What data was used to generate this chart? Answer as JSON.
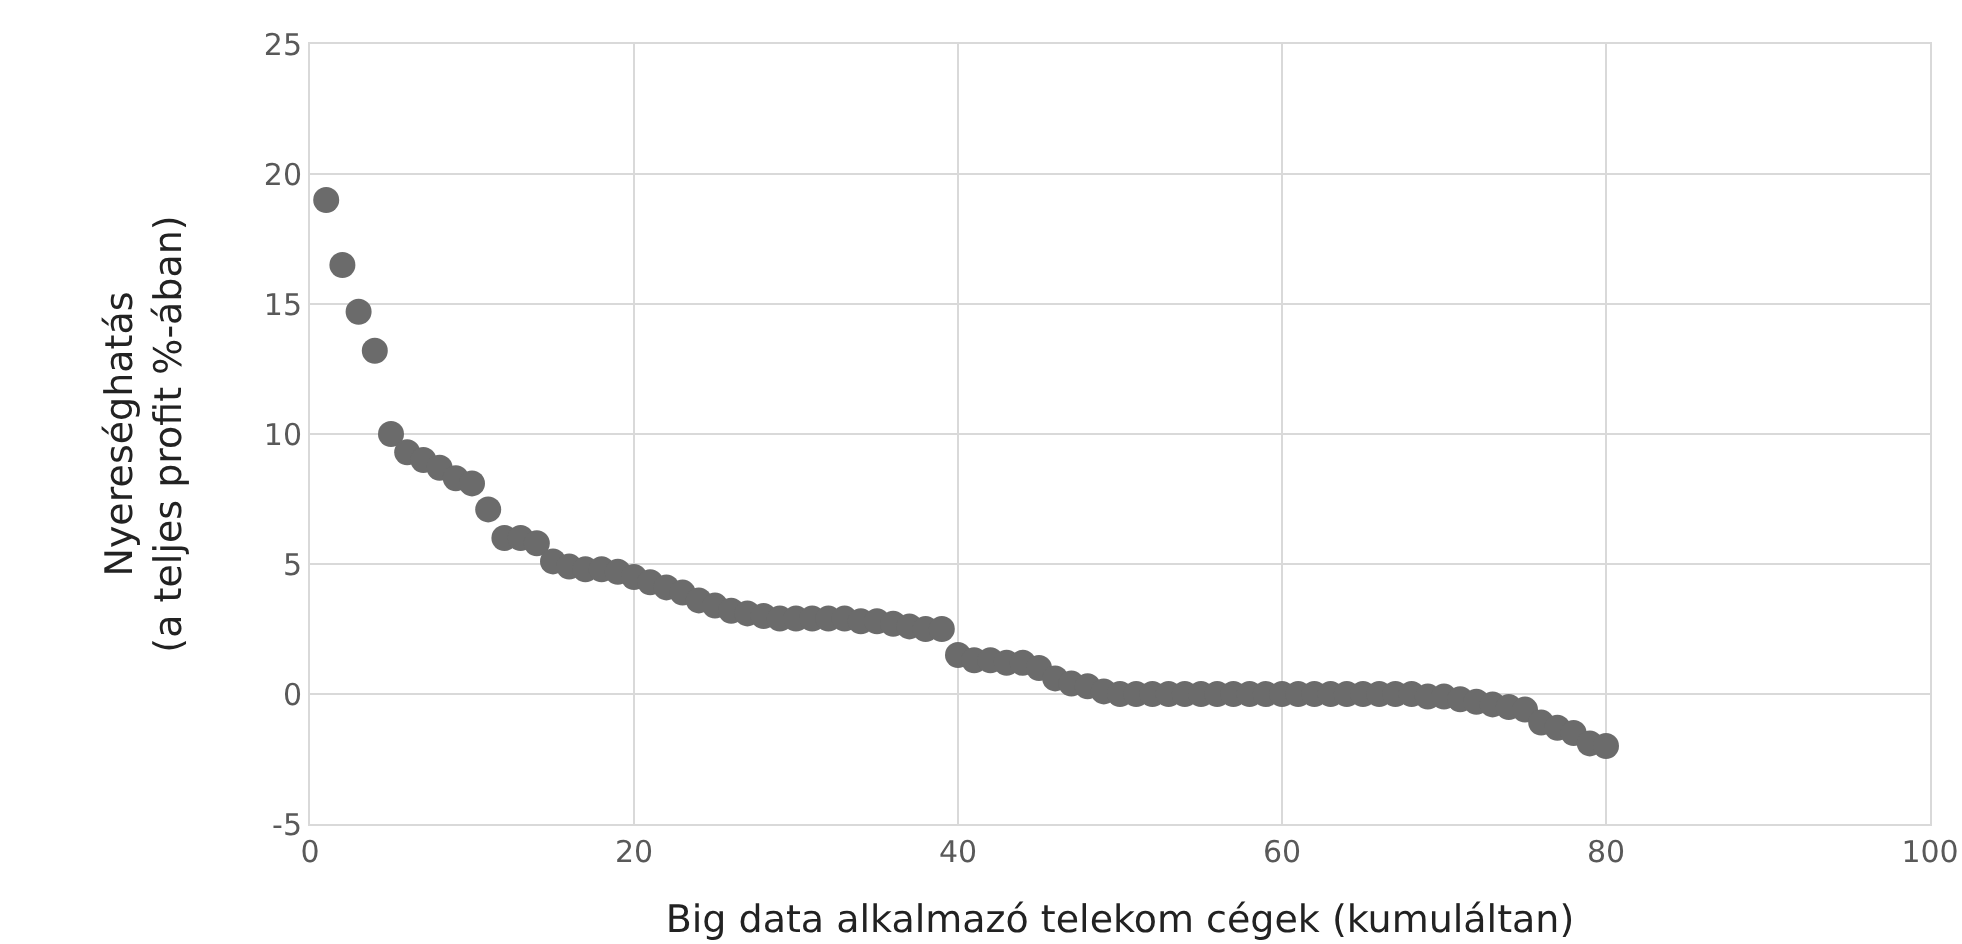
{
  "chart_data": {
    "type": "scatter",
    "xlabel": "Big data alkalmazó telekom cégek (kumuláltan)",
    "ylabel": "Nyereséghatás\n(a teljes profit %-ában)",
    "x": [
      1,
      2,
      3,
      4,
      5,
      6,
      7,
      8,
      9,
      10,
      11,
      12,
      13,
      14,
      15,
      16,
      17,
      18,
      19,
      20,
      21,
      22,
      23,
      24,
      25,
      26,
      27,
      28,
      29,
      30,
      31,
      32,
      33,
      34,
      35,
      36,
      37,
      38,
      39,
      40,
      41,
      42,
      43,
      44,
      45,
      46,
      47,
      48,
      49,
      50,
      51,
      52,
      53,
      54,
      55,
      56,
      57,
      58,
      59,
      60,
      61,
      62,
      63,
      64,
      65,
      66,
      67,
      68,
      69,
      70,
      71,
      72,
      73,
      74,
      75,
      76,
      77,
      78,
      79,
      80
    ],
    "series": [
      {
        "color": "#6b6b6b",
        "values": [
          19,
          16.5,
          14.7,
          13.2,
          10,
          9.3,
          9,
          8.7,
          8.3,
          8.1,
          7.1,
          6,
          6,
          5.8,
          5.1,
          4.9,
          4.8,
          4.8,
          4.7,
          4.5,
          4.3,
          4.1,
          3.9,
          3.6,
          3.4,
          3.2,
          3.1,
          3,
          2.9,
          2.9,
          2.9,
          2.9,
          2.9,
          2.8,
          2.8,
          2.7,
          2.6,
          2.5,
          2.5,
          1.5,
          1.3,
          1.3,
          1.2,
          1.2,
          1,
          0.6,
          0.4,
          0.3,
          0.1,
          0,
          0,
          0,
          0,
          0,
          0,
          0,
          0,
          0,
          0,
          0,
          0,
          0,
          0,
          0,
          0,
          0,
          0,
          0,
          -0.1,
          -0.1,
          -0.2,
          -0.3,
          -0.4,
          -0.5,
          -0.6,
          -1.1,
          -1.3,
          -1.5,
          -1.9,
          -2
        ]
      }
    ],
    "xlim": [
      0,
      100
    ],
    "xticks": [
      0,
      20,
      40,
      60,
      80,
      100
    ],
    "ylim": [
      -5,
      25
    ],
    "yticks": [
      -5,
      0,
      5,
      10,
      15,
      20,
      25
    ],
    "grid": true,
    "marker": "circle"
  }
}
